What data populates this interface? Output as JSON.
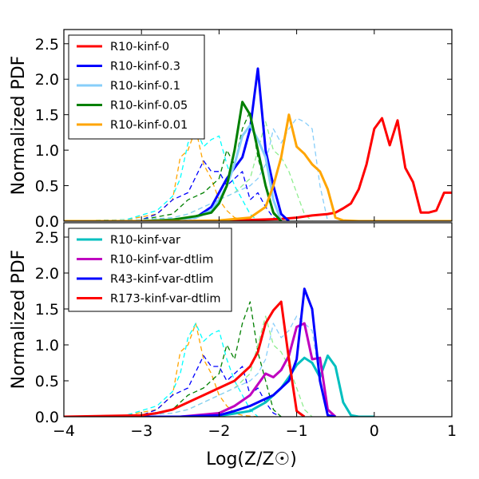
{
  "chart_data": [
    {
      "type": "line",
      "title": "",
      "xlabel": "Log(Z/Z☉)",
      "ylabel": "Normalized PDF",
      "xlim": [
        -4,
        1
      ],
      "ylim": [
        0,
        2.7
      ],
      "xticks": [
        -4,
        -3,
        -2,
        -1,
        0,
        1
      ],
      "xtick_labels": [
        "−4",
        "−3",
        "−2",
        "−1",
        "0",
        "1"
      ],
      "xticks_visible": false,
      "yticks": [
        0,
        0.5,
        1.0,
        1.5,
        2.0,
        2.5
      ],
      "ytick_labels": [
        "0.0",
        "0.5",
        "1.0",
        "1.5",
        "2.0",
        "2.5"
      ],
      "grid": false,
      "legend_position": "top-left",
      "series": [
        {
          "name": "R10-kinf-0",
          "color": "#ff0000",
          "style": "solid",
          "in_legend": true,
          "x": [
            -4.0,
            -3.0,
            -2.5,
            -2.0,
            -1.5,
            -1.2,
            -1.0,
            -0.8,
            -0.6,
            -0.5,
            -0.4,
            -0.3,
            -0.2,
            -0.1,
            0.0,
            0.1,
            0.2,
            0.3,
            0.4,
            0.5,
            0.6,
            0.7,
            0.8,
            0.9,
            1.0
          ],
          "y": [
            0.0,
            0.0,
            0.0,
            0.0,
            0.02,
            0.03,
            0.05,
            0.08,
            0.1,
            0.12,
            0.18,
            0.25,
            0.45,
            0.8,
            1.3,
            1.45,
            1.07,
            1.42,
            0.75,
            0.55,
            0.12,
            0.12,
            0.15,
            0.4,
            0.4
          ]
        },
        {
          "name": "R10-kinf-0.3",
          "color": "#0000ff",
          "style": "solid",
          "in_legend": true,
          "x": [
            -4.0,
            -3.0,
            -2.6,
            -2.3,
            -2.1,
            -2.0,
            -1.9,
            -1.8,
            -1.7,
            -1.6,
            -1.5,
            -1.4,
            -1.3,
            -1.2,
            -1.1
          ],
          "y": [
            0.0,
            0.0,
            0.02,
            0.05,
            0.2,
            0.4,
            0.6,
            0.75,
            0.9,
            1.3,
            2.15,
            1.0,
            0.5,
            0.1,
            0.0
          ]
        },
        {
          "name": "R10-kinf-0.1",
          "color": "#87cefa",
          "style": "solid",
          "in_legend": true,
          "x": [
            -4.0,
            -3.0,
            -2.6,
            -2.3,
            -2.1,
            -2.0,
            -1.9,
            -1.8,
            -1.7,
            -1.6,
            -1.5,
            -1.4,
            -1.3,
            -1.2
          ],
          "y": [
            0.0,
            0.0,
            0.02,
            0.05,
            0.15,
            0.3,
            0.5,
            0.8,
            1.2,
            1.35,
            1.15,
            0.9,
            0.3,
            0.0
          ]
        },
        {
          "name": "R10-kinf-0.05",
          "color": "#008000",
          "style": "solid",
          "in_legend": true,
          "x": [
            -4.0,
            -3.0,
            -2.6,
            -2.3,
            -2.1,
            -2.0,
            -1.9,
            -1.8,
            -1.7,
            -1.6,
            -1.5,
            -1.4,
            -1.3,
            -1.2
          ],
          "y": [
            0.0,
            0.0,
            0.02,
            0.07,
            0.12,
            0.25,
            0.5,
            1.0,
            1.68,
            1.5,
            1.0,
            0.5,
            0.12,
            0.0
          ]
        },
        {
          "name": "R10-kinf-0.01",
          "color": "#ffa500",
          "style": "solid",
          "in_legend": true,
          "x": [
            -4.0,
            -3.0,
            -2.5,
            -2.0,
            -1.6,
            -1.4,
            -1.3,
            -1.2,
            -1.1,
            -1.0,
            -0.9,
            -0.8,
            -0.7,
            -0.6,
            -0.5,
            -0.4,
            -0.2,
            0.0,
            0.5,
            1.0
          ],
          "y": [
            0.0,
            0.0,
            0.0,
            0.01,
            0.05,
            0.2,
            0.5,
            0.9,
            1.5,
            1.05,
            0.95,
            0.8,
            0.7,
            0.45,
            0.05,
            0.01,
            0.0,
            0.0,
            0.0,
            0.0
          ]
        },
        {
          "name": "",
          "color": "#ffa500",
          "style": "dashed",
          "in_legend": false,
          "x": [
            -4.0,
            -3.2,
            -2.8,
            -2.6,
            -2.5,
            -2.4,
            -2.3,
            -2.2,
            -2.1,
            -2.0,
            -1.9,
            -1.8,
            -1.7,
            -1.6,
            -1.5
          ],
          "y": [
            0.0,
            0.02,
            0.1,
            0.3,
            0.9,
            1.0,
            1.3,
            0.8,
            0.6,
            0.3,
            0.15,
            0.05,
            0.02,
            0.01,
            0.0
          ]
        },
        {
          "name": "",
          "color": "#00ffff",
          "style": "dashed",
          "in_legend": false,
          "x": [
            -4.0,
            -3.2,
            -2.8,
            -2.6,
            -2.5,
            -2.4,
            -2.3,
            -2.2,
            -2.1,
            -2.0,
            -1.9,
            -1.8,
            -1.7,
            -1.6,
            -1.5
          ],
          "y": [
            0.0,
            0.02,
            0.15,
            0.35,
            0.6,
            1.1,
            1.3,
            1.05,
            1.15,
            1.2,
            0.8,
            0.5,
            0.3,
            0.1,
            0.0
          ]
        },
        {
          "name": "",
          "color": "#0000ff",
          "style": "dashed",
          "in_legend": false,
          "x": [
            -4.0,
            -3.0,
            -2.8,
            -2.6,
            -2.4,
            -2.2,
            -2.1,
            -2.0,
            -1.9,
            -1.8,
            -1.7,
            -1.6,
            -1.5,
            -1.4,
            -1.3,
            -1.2
          ],
          "y": [
            0.0,
            0.02,
            0.1,
            0.3,
            0.4,
            0.85,
            0.7,
            0.7,
            0.5,
            0.6,
            0.7,
            0.3,
            0.4,
            0.2,
            0.05,
            0.0
          ]
        },
        {
          "name": "",
          "color": "#008000",
          "style": "dashed",
          "in_legend": false,
          "x": [
            -4.0,
            -3.0,
            -2.6,
            -2.4,
            -2.2,
            -2.0,
            -1.9,
            -1.8,
            -1.7,
            -1.6,
            -1.5,
            -1.4,
            -1.3,
            -1.2
          ],
          "y": [
            0.0,
            0.02,
            0.1,
            0.3,
            0.4,
            0.6,
            1.0,
            0.8,
            1.3,
            1.55,
            0.9,
            0.5,
            0.1,
            0.0
          ]
        },
        {
          "name": "",
          "color": "#90ee90",
          "style": "dashed",
          "in_legend": false,
          "x": [
            -4.0,
            -3.0,
            -2.6,
            -2.4,
            -2.2,
            -2.0,
            -1.8,
            -1.6,
            -1.5,
            -1.4,
            -1.3,
            -1.2,
            -1.1,
            -1.0,
            -0.9,
            -0.8
          ],
          "y": [
            0.0,
            0.02,
            0.05,
            0.1,
            0.2,
            0.3,
            0.4,
            0.6,
            1.0,
            1.4,
            1.0,
            0.9,
            0.7,
            0.4,
            0.1,
            0.0
          ]
        },
        {
          "name": "",
          "color": "#87cefa",
          "style": "dashed",
          "in_legend": false,
          "x": [
            -4.0,
            -3.0,
            -2.6,
            -2.4,
            -2.2,
            -2.0,
            -1.8,
            -1.6,
            -1.5,
            -1.4,
            -1.3,
            -1.2,
            -1.1,
            -1.0,
            -0.9,
            -0.8,
            -0.7,
            -0.6
          ],
          "y": [
            0.0,
            0.02,
            0.05,
            0.1,
            0.2,
            0.3,
            0.4,
            0.5,
            0.6,
            0.8,
            1.3,
            1.1,
            1.3,
            1.45,
            1.4,
            1.3,
            0.5,
            0.0
          ]
        }
      ]
    },
    {
      "type": "line",
      "title": "",
      "xlabel": "Log(Z/Z☉)",
      "ylabel": "Normalized PDF",
      "xlim": [
        -4,
        1
      ],
      "ylim": [
        0,
        2.7
      ],
      "xticks": [
        -4,
        -3,
        -2,
        -1,
        0,
        1
      ],
      "xtick_labels": [
        "−4",
        "−3",
        "−2",
        "−1",
        "0",
        "1"
      ],
      "xticks_visible": true,
      "yticks": [
        0,
        0.5,
        1.0,
        1.5,
        2.0,
        2.5
      ],
      "ytick_labels": [
        "0.0",
        "0.5",
        "1.0",
        "1.5",
        "2.0",
        "2.5"
      ],
      "grid": false,
      "legend_position": "top-left",
      "series": [
        {
          "name": "R10-kinf-var",
          "color": "#00bfbf",
          "style": "solid",
          "in_legend": true,
          "x": [
            -4.0,
            -3.0,
            -2.5,
            -2.0,
            -1.6,
            -1.4,
            -1.2,
            -1.1,
            -1.0,
            -0.9,
            -0.8,
            -0.7,
            -0.6,
            -0.5,
            -0.4,
            -0.3,
            -0.2,
            0.0
          ],
          "y": [
            0.0,
            0.0,
            0.0,
            0.01,
            0.08,
            0.2,
            0.4,
            0.55,
            0.72,
            0.82,
            0.75,
            0.55,
            0.85,
            0.7,
            0.2,
            0.02,
            0.0,
            0.0
          ]
        },
        {
          "name": "R10-kinf-var-dtlim",
          "color": "#bf00bf",
          "style": "solid",
          "in_legend": true,
          "x": [
            -4.0,
            -3.0,
            -2.5,
            -2.0,
            -1.8,
            -1.6,
            -1.5,
            -1.4,
            -1.3,
            -1.2,
            -1.1,
            -1.0,
            -0.9,
            -0.8,
            -0.7,
            -0.6,
            -0.5
          ],
          "y": [
            0.0,
            0.0,
            0.0,
            0.05,
            0.15,
            0.3,
            0.45,
            0.6,
            0.55,
            0.65,
            0.85,
            1.25,
            1.3,
            0.8,
            0.82,
            0.1,
            0.0
          ]
        },
        {
          "name": "R43-kinf-var-dtlim",
          "color": "#0000ff",
          "style": "solid",
          "in_legend": true,
          "x": [
            -4.0,
            -3.0,
            -2.5,
            -2.0,
            -1.8,
            -1.6,
            -1.5,
            -1.4,
            -1.3,
            -1.2,
            -1.1,
            -1.0,
            -0.9,
            -0.8,
            -0.7,
            -0.6,
            -0.5
          ],
          "y": [
            0.0,
            0.0,
            0.0,
            0.02,
            0.08,
            0.15,
            0.2,
            0.25,
            0.3,
            0.4,
            0.5,
            0.8,
            1.78,
            1.5,
            0.5,
            0.02,
            0.0
          ]
        },
        {
          "name": "R173-kinf-var-dtlim",
          "color": "#ff0000",
          "style": "solid",
          "in_legend": true,
          "x": [
            -4.0,
            -3.0,
            -2.8,
            -2.6,
            -2.4,
            -2.2,
            -2.0,
            -1.8,
            -1.6,
            -1.5,
            -1.4,
            -1.3,
            -1.2,
            -1.1,
            -1.0,
            -0.9
          ],
          "y": [
            0.0,
            0.02,
            0.05,
            0.1,
            0.2,
            0.3,
            0.4,
            0.5,
            0.7,
            0.9,
            1.3,
            1.48,
            1.6,
            0.8,
            0.08,
            0.0
          ]
        },
        {
          "name": "",
          "color": "#ffa500",
          "style": "dashed",
          "in_legend": false,
          "x": [
            -4.0,
            -3.2,
            -2.8,
            -2.6,
            -2.5,
            -2.4,
            -2.3,
            -2.2,
            -2.1,
            -2.0,
            -1.9,
            -1.8,
            -1.7,
            -1.6,
            -1.5
          ],
          "y": [
            0.0,
            0.02,
            0.1,
            0.3,
            0.9,
            1.0,
            1.3,
            0.8,
            0.6,
            0.3,
            0.15,
            0.05,
            0.02,
            0.01,
            0.0
          ]
        },
        {
          "name": "",
          "color": "#00ffff",
          "style": "dashed",
          "in_legend": false,
          "x": [
            -4.0,
            -3.2,
            -2.8,
            -2.6,
            -2.5,
            -2.4,
            -2.3,
            -2.2,
            -2.1,
            -2.0,
            -1.9,
            -1.8,
            -1.7,
            -1.6,
            -1.5
          ],
          "y": [
            0.0,
            0.02,
            0.15,
            0.35,
            0.6,
            1.1,
            1.3,
            1.05,
            1.15,
            1.2,
            0.8,
            0.5,
            0.3,
            0.1,
            0.0
          ]
        },
        {
          "name": "",
          "color": "#0000ff",
          "style": "dashed",
          "in_legend": false,
          "x": [
            -4.0,
            -3.0,
            -2.8,
            -2.6,
            -2.4,
            -2.2,
            -2.1,
            -2.0,
            -1.9,
            -1.8,
            -1.7,
            -1.6,
            -1.5,
            -1.4,
            -1.3,
            -1.2
          ],
          "y": [
            0.0,
            0.02,
            0.1,
            0.3,
            0.4,
            0.85,
            0.7,
            0.7,
            0.5,
            0.6,
            0.7,
            0.3,
            0.4,
            0.2,
            0.05,
            0.0
          ]
        },
        {
          "name": "",
          "color": "#008000",
          "style": "dashed",
          "in_legend": false,
          "x": [
            -4.0,
            -3.0,
            -2.6,
            -2.4,
            -2.2,
            -2.0,
            -1.9,
            -1.8,
            -1.7,
            -1.6,
            -1.5,
            -1.4,
            -1.3,
            -1.2
          ],
          "y": [
            0.0,
            0.02,
            0.1,
            0.3,
            0.4,
            0.6,
            1.0,
            0.8,
            1.3,
            1.6,
            0.9,
            0.5,
            0.1,
            0.0
          ]
        },
        {
          "name": "",
          "color": "#90ee90",
          "style": "dashed",
          "in_legend": false,
          "x": [
            -4.0,
            -3.0,
            -2.6,
            -2.4,
            -2.2,
            -2.0,
            -1.8,
            -1.6,
            -1.5,
            -1.4,
            -1.3,
            -1.2,
            -1.1,
            -1.0,
            -0.9,
            -0.8
          ],
          "y": [
            0.0,
            0.02,
            0.05,
            0.1,
            0.2,
            0.3,
            0.4,
            0.6,
            1.0,
            1.4,
            1.0,
            0.9,
            0.7,
            0.4,
            0.1,
            0.0
          ]
        },
        {
          "name": "",
          "color": "#87cefa",
          "style": "dashed",
          "in_legend": false,
          "x": [
            -4.0,
            -3.0,
            -2.6,
            -2.4,
            -2.2,
            -2.0,
            -1.8,
            -1.6,
            -1.5,
            -1.4,
            -1.3,
            -1.2,
            -1.1,
            -1.0,
            -0.9,
            -0.8,
            -0.7,
            -0.6
          ],
          "y": [
            0.0,
            0.02,
            0.05,
            0.1,
            0.2,
            0.3,
            0.4,
            0.5,
            0.6,
            0.8,
            1.3,
            1.1,
            1.2,
            1.4,
            1.3,
            1.2,
            0.5,
            0.0
          ]
        }
      ]
    }
  ]
}
